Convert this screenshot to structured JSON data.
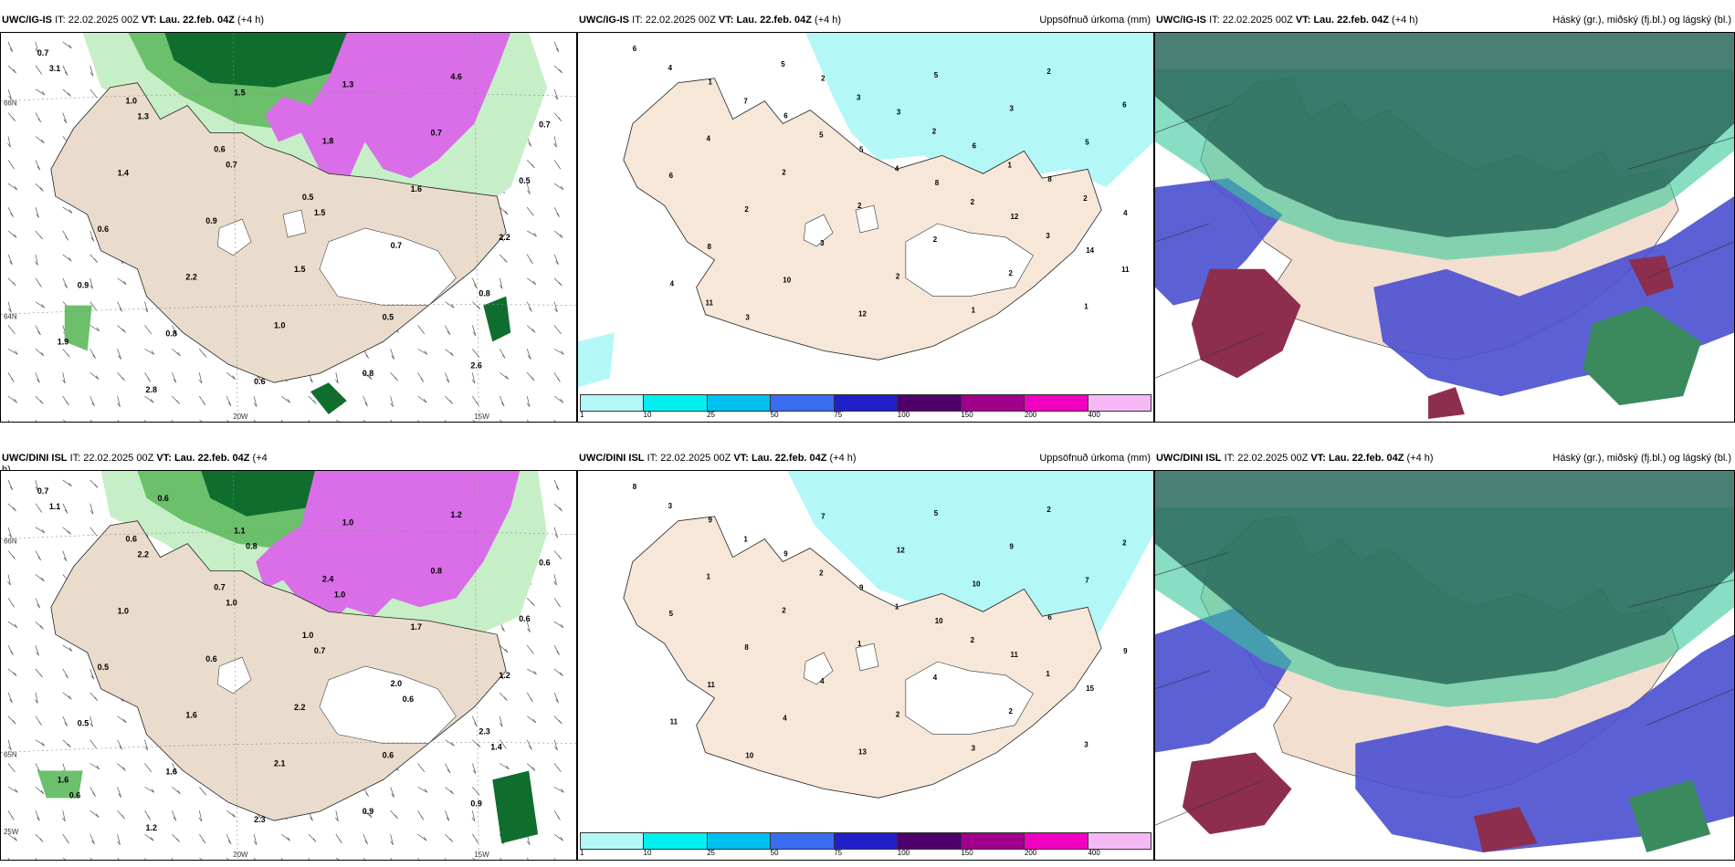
{
  "panels": [
    {
      "id": "p1",
      "model": "UWC/IG-IS",
      "it_label": "IT:",
      "it": "22.02.2025 00Z",
      "vt_label": "VT:",
      "vt": "Lau. 22.feb. 04Z",
      "lead": "(+4 h)",
      "right_title": "",
      "type": "wind"
    },
    {
      "id": "p2",
      "model": "UWC/IG-IS",
      "it_label": "IT:",
      "it": "22.02.2025 00Z",
      "vt_label": "VT:",
      "vt": "Lau. 22.feb. 04Z",
      "lead": "(+4 h)",
      "right_title": "Uppsöfnuð úrkoma (mm)",
      "type": "precip"
    },
    {
      "id": "p3",
      "model": "UWC/IG-IS",
      "it_label": "IT:",
      "it": "22.02.2025 00Z",
      "vt_label": "VT:",
      "vt": "Lau. 22.feb. 04Z",
      "lead": "(+4 h)",
      "right_title": "Háský (gr.), miðský (fj.bl.) og lágský (bl.)",
      "type": "cloud"
    },
    {
      "id": "p4",
      "model": "UWC/DINI ISL",
      "it_label": "IT:",
      "it": "22.02.2025 00Z",
      "vt_label": "VT:",
      "vt": "Lau. 22.feb. 04Z",
      "lead": "(+4",
      "lead2": "h)",
      "right_title": "",
      "type": "wind"
    },
    {
      "id": "p5",
      "model": "UWC/DINI ISL",
      "it_label": "IT:",
      "it": "22.02.2025 00Z",
      "vt_label": "VT:",
      "vt": "Lau. 22.feb. 04Z",
      "lead": "(+4 h)",
      "right_title": "Uppsöfnuð úrkoma (mm)",
      "type": "precip"
    },
    {
      "id": "p6",
      "model": "UWC/DINI ISL",
      "it_label": "IT:",
      "it": "22.02.2025 00Z",
      "vt_label": "VT:",
      "vt": "Lau. 22.feb. 04Z",
      "lead": "(+4 h)",
      "right_title": "Háský (gr.), miðský (fj.bl.) og lágský (bl.)",
      "type": "cloud"
    }
  ],
  "coords": {
    "lat_a": "66N",
    "lat_b": "64N",
    "lat_c": "65N",
    "lon_a": "20W",
    "lon_b": "15W",
    "lon_c": "25W"
  },
  "legend": {
    "ticks": [
      "1",
      "10",
      "25",
      "50",
      "75",
      "100",
      "150",
      "200",
      "400"
    ],
    "colors": [
      "#b3f7f7",
      "#00f0f0",
      "#00c0f0",
      "#3a6cf0",
      "#2020c8",
      "#50006a",
      "#a0008c",
      "#f000c0",
      "#f5b8f5"
    ]
  },
  "colors": {
    "land": "#f6e7d9",
    "wind_land": "#e9dccc",
    "light_green": "#c7efc7",
    "mid_green": "#6cc06c",
    "dark_green": "#0f6e2e",
    "magenta": "#d96ee8",
    "precip_cyan": "#b3f7f7",
    "cloud_high": "#2a6a5a",
    "cloud_mid": "#4a4fd0",
    "cloud_low": "#8e2e4e",
    "teal": "#38c89a"
  },
  "labels": {
    "p1": [
      "0.7",
      "1.0",
      "0.6",
      "0.5",
      "0.7",
      "0.8",
      "1.9",
      "2.8",
      "1.5",
      "1.8",
      "1.6",
      "2.2",
      "0.9",
      "0.8",
      "0.6",
      "1.3",
      "0.7",
      "0.5",
      "0.6",
      "2.2",
      "1.0",
      "0.8",
      "4.6",
      "0.7",
      "1.4",
      "0.9",
      "1.5",
      "0.5",
      "2.6",
      "3.1",
      "1.3",
      "0.7",
      "1.5"
    ],
    "p2": [
      "6",
      "1",
      "6",
      "5",
      "8",
      "12",
      "14",
      "4",
      "3",
      "2",
      "3",
      "6",
      "8",
      "4",
      "8",
      "10",
      "12",
      "5",
      "3",
      "5",
      "6",
      "2",
      "3",
      "2",
      "1",
      "2",
      "6",
      "4",
      "2",
      "2",
      "2",
      "2",
      "1",
      "4",
      "7",
      "5",
      "4",
      "2",
      "3",
      "11",
      "11",
      "5",
      "3",
      "2",
      "1",
      "2"
    ],
    "p4": [
      "0.7",
      "0.6",
      "0.7",
      "1.0",
      "2.0",
      "2.3",
      "1.6",
      "1.2",
      "1.1",
      "2.4",
      "1.7",
      "1.2",
      "0.5",
      "1.6",
      "2.3",
      "1.0",
      "0.8",
      "0.6",
      "0.5",
      "1.6",
      "2.1",
      "0.9",
      "1.2",
      "0.6",
      "1.0",
      "0.6",
      "2.2",
      "0.6",
      "0.9",
      "1.1",
      "2.2",
      "1.0",
      "0.7",
      "0.6",
      "1.4",
      "0.6",
      "0.6",
      "0.8",
      "1.0"
    ],
    "p5": [
      "8",
      "9",
      "9",
      "9",
      "10",
      "11",
      "15",
      "11",
      "10",
      "7",
      "12",
      "10",
      "6",
      "9",
      "11",
      "4",
      "13",
      "5",
      "9",
      "7",
      "5",
      "8",
      "4",
      "2",
      "3",
      "2",
      "2",
      "1",
      "2",
      "1",
      "4",
      "2",
      "3",
      "3",
      "1",
      "2",
      "1",
      "2",
      "1"
    ]
  }
}
